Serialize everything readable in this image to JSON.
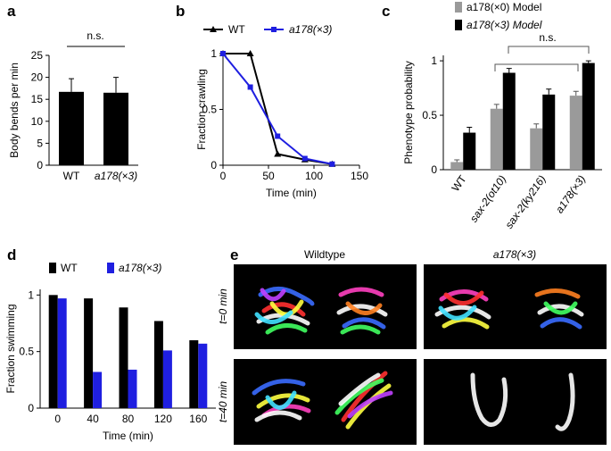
{
  "chart_data": [
    {
      "type": "bar",
      "label": "a",
      "ylabel": "Body bends per min",
      "annotation": "n.s.",
      "categories": [
        "WT",
        "a178(×3)"
      ],
      "values": [
        16.7,
        16.5
      ],
      "errors": [
        3,
        3.5
      ],
      "color": "#000000",
      "ylim": [
        0,
        25
      ],
      "yticks": [
        0,
        5,
        10,
        15,
        20,
        25
      ]
    },
    {
      "type": "line",
      "label": "b",
      "xlabel": "Time (min)",
      "ylabel": "Fraction crawling",
      "x": [
        0,
        30,
        60,
        90,
        120
      ],
      "series": [
        {
          "name": "WT",
          "color": "#000000",
          "marker": "triangle",
          "values": [
            1,
            1,
            0.1,
            0.05,
            0.01
          ]
        },
        {
          "name": "a178(×3)",
          "color": "#1f1fe0",
          "marker": "square",
          "values": [
            1,
            0.7,
            0.26,
            0.06,
            0.01
          ]
        }
      ],
      "xlim": [
        0,
        150
      ],
      "xticks": [
        0,
        50,
        100,
        150
      ],
      "ylim": [
        0,
        1
      ],
      "yticks": [
        0,
        0.5,
        1
      ]
    },
    {
      "type": "bar",
      "label": "c",
      "ylabel": "Phenotype probability",
      "annotation": "n.s.",
      "categories": [
        "WT",
        "sax-2(ot10)",
        "sax-2(ky216)",
        "a178(×3)"
      ],
      "series": [
        {
          "name": "a178(×0) Model",
          "color": "#9a9a9a",
          "values": [
            0.07,
            0.56,
            0.38,
            0.68
          ],
          "errors": [
            0.02,
            0.04,
            0.04,
            0.04
          ]
        },
        {
          "name": "a178(×3) Model",
          "color": "#000000",
          "values": [
            0.34,
            0.89,
            0.69,
            0.98
          ],
          "errors": [
            0.05,
            0.04,
            0.05,
            0.02
          ]
        }
      ],
      "ylim": [
        0,
        1.05
      ],
      "yticks": [
        0,
        0.5,
        1
      ]
    },
    {
      "type": "bar",
      "label": "d",
      "xlabel": "Time (min)",
      "ylabel": "Fraction swimming",
      "categories": [
        "0",
        "40",
        "80",
        "120",
        "160"
      ],
      "series": [
        {
          "name": "WT",
          "color": "#000000",
          "values": [
            1,
            0.97,
            0.89,
            0.77,
            0.6
          ]
        },
        {
          "name": "a178(×3)",
          "color": "#1f1fe0",
          "values": [
            0.97,
            0.32,
            0.34,
            0.51,
            0.57
          ]
        }
      ],
      "ylim": [
        0,
        1.05
      ],
      "yticks": [
        0,
        0.5,
        1
      ]
    }
  ],
  "panel_e": {
    "label": "e",
    "columns": [
      "Wildtype",
      "a178(×3)"
    ],
    "rows": [
      "t=0 min",
      "t=40 min"
    ]
  }
}
